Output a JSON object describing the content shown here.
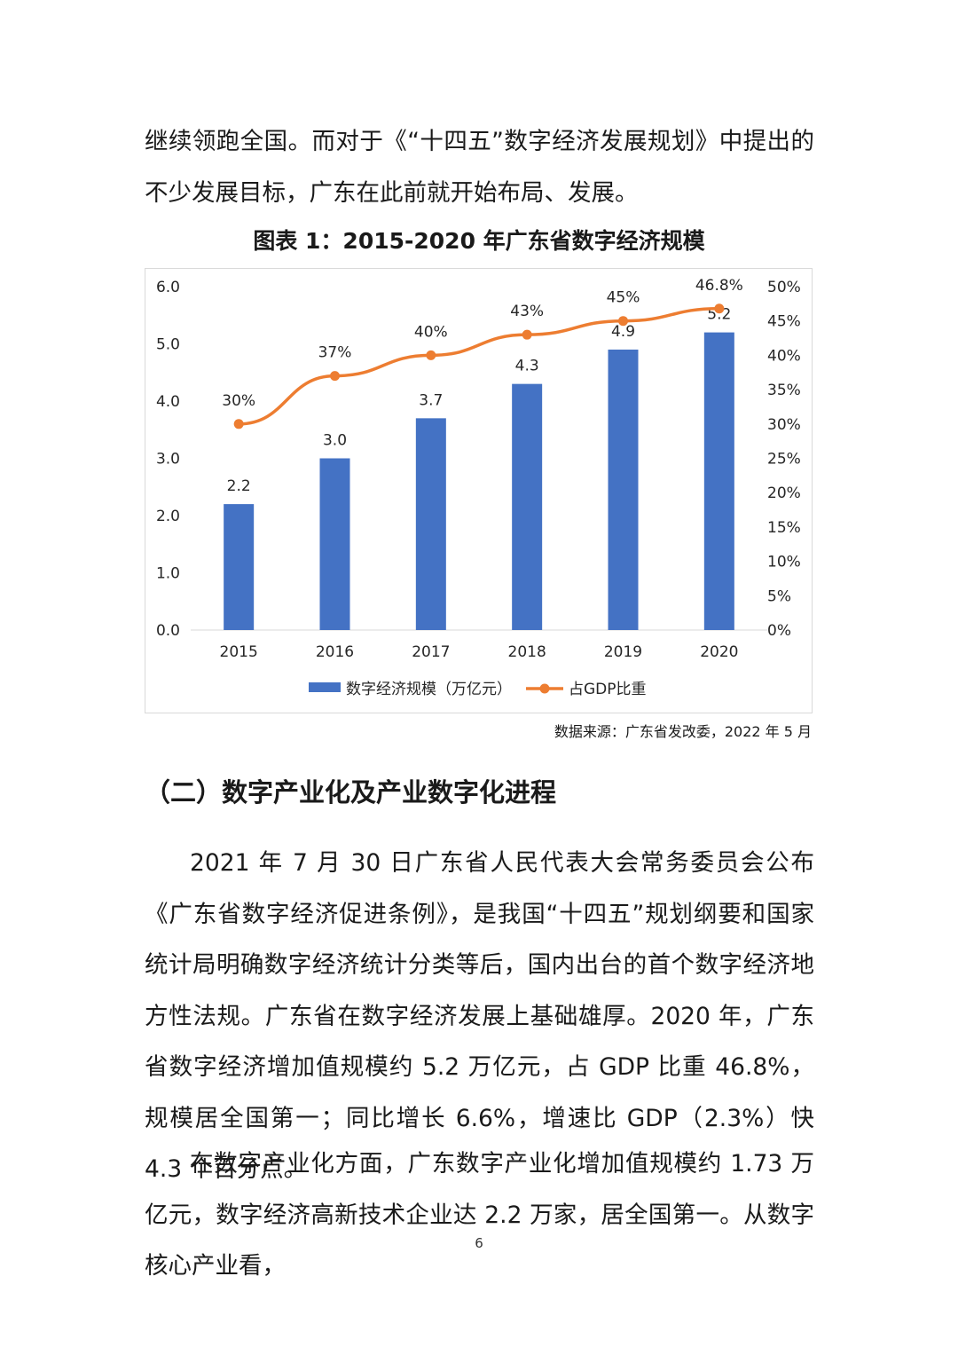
{
  "intro_paragraph": "继续领跑全国。而对于《“十四五”数字经济发展规划》中提出的不少发展目标，广东在此前就开始布局、发展。",
  "figure_title": "图表 1：2015-2020 年广东省数字经济规模",
  "chart_data": {
    "type": "bar",
    "categories": [
      "2015",
      "2016",
      "2017",
      "2018",
      "2019",
      "2020"
    ],
    "series": [
      {
        "name": "数字经济规模（万亿元）",
        "type": "bar",
        "axis": "left",
        "color": "#4472C4",
        "values": [
          2.2,
          3.0,
          3.7,
          4.3,
          4.9,
          5.2
        ],
        "labels": [
          "2.2",
          "3.0",
          "3.7",
          "4.3",
          "4.9",
          "5.2"
        ]
      },
      {
        "name": "占GDP比重",
        "type": "line",
        "axis": "right",
        "color": "#ED7D31",
        "values": [
          30,
          37,
          40,
          43,
          45,
          46.8
        ],
        "labels": [
          "30%",
          "37%",
          "40%",
          "43%",
          "45%",
          "46.8%"
        ]
      }
    ],
    "y_left": {
      "min": 0,
      "max": 6,
      "ticks": [
        "0.0",
        "1.0",
        "2.0",
        "3.0",
        "4.0",
        "5.0",
        "6.0"
      ]
    },
    "y_right": {
      "min": 0,
      "max": 50,
      "ticks": [
        "0%",
        "5%",
        "10%",
        "15%",
        "20%",
        "25%",
        "30%",
        "35%",
        "40%",
        "45%",
        "50%"
      ]
    },
    "grid": false,
    "legend_position": "bottom"
  },
  "source_note": "数据来源：广东省发改委，2022 年 5 月",
  "section_heading": "（二）数字产业化及产业数字化进程",
  "paragraph_2": "2021 年 7 月 30 日广东省人民代表大会常务委员会公布《广东省数字经济促进条例》，是我国“十四五”规划纲要和国家统计局明确数字经济统计分类等后，国内出台的首个数字经济地方性法规。广东省在数字经济发展上基础雄厚。2020 年，广东省数字经济增加值规模约 5.2 万亿元，占 GDP 比重 46.8%，规模居全国第一；同比增长 6.6%，增速比 GDP（2.3%）快 4.3 个百分点。",
  "paragraph_3": "在数字产业化方面，广东数字产业化增加值规模约 1.73 万亿元，数字经济高新技术企业达 2.2 万家，居全国第一。从数字核心产业看，",
  "page_number": "6"
}
